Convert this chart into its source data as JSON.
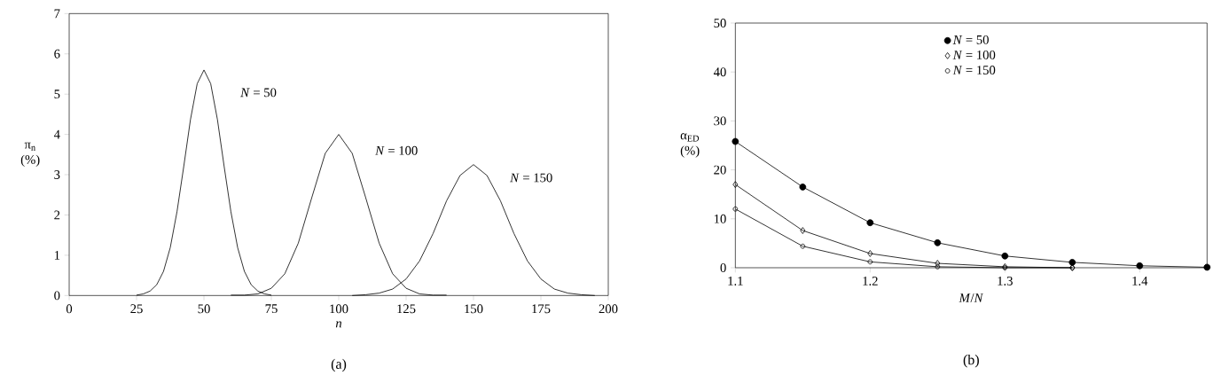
{
  "chart_data": [
    {
      "type": "line",
      "xlabel": "*n*",
      "ylabel": "π$_{n}$ (%)",
      "annotations": [
        "(a)"
      ],
      "xlim": [
        0,
        200
      ],
      "ylim": [
        0,
        7
      ],
      "xticks": [
        0,
        25,
        50,
        75,
        100,
        125,
        150,
        175,
        200
      ],
      "yticks": [
        0,
        1,
        2,
        3,
        4,
        5,
        6,
        7
      ],
      "grid": false,
      "legend": false,
      "marker": "none",
      "line_style": "solid",
      "series": [
        {
          "name": "*N* = 50",
          "color": "#000000",
          "x": [
            25,
            27.5,
            30,
            32.5,
            35,
            37.5,
            40,
            42.5,
            45,
            47.5,
            50,
            52.5,
            55,
            57.5,
            60,
            62.5,
            65,
            67.5,
            70,
            72.5,
            75
          ],
          "values": [
            0.01,
            0.04,
            0.11,
            0.27,
            0.6,
            1.19,
            2.08,
            3.2,
            4.37,
            5.26,
            5.6,
            5.26,
            4.37,
            3.2,
            2.08,
            1.19,
            0.6,
            0.27,
            0.11,
            0.04,
            0.01
          ]
        },
        {
          "name": "*N* = 100",
          "color": "#000000",
          "x": [
            60,
            65,
            70,
            75,
            80,
            85,
            90,
            95,
            100,
            105,
            110,
            115,
            120,
            125,
            130,
            135,
            140
          ],
          "values": [
            0.01,
            0.01,
            0.04,
            0.18,
            0.54,
            1.3,
            2.43,
            3.53,
            4,
            3.53,
            2.43,
            1.3,
            0.54,
            0.18,
            0.04,
            0.01,
            0.01
          ]
        },
        {
          "name": "*N* = 150",
          "color": "#000000",
          "x": [
            105,
            110,
            115,
            120,
            125,
            130,
            135,
            140,
            145,
            150,
            155,
            160,
            165,
            170,
            175,
            180,
            185,
            190,
            195
          ],
          "values": [
            0,
            0.02,
            0.06,
            0.16,
            0.41,
            0.86,
            1.54,
            2.35,
            2.98,
            3.25,
            2.98,
            2.35,
            1.54,
            0.86,
            0.41,
            0.16,
            0.06,
            0.02,
            0
          ]
        }
      ]
    },
    {
      "type": "line",
      "xlabel": "*M*/*N*",
      "ylabel": "α$_{ED}$ (%)",
      "annotations": [
        "(b)"
      ],
      "xlim": [
        1.1,
        1.45
      ],
      "ylim": [
        0,
        50
      ],
      "xticks": [
        1.1,
        1.2,
        1.3,
        1.4
      ],
      "yticks": [
        0,
        10,
        20,
        30,
        40,
        50
      ],
      "grid": false,
      "legend": "top",
      "line_style": "solid",
      "series": [
        {
          "name": "*N* = 50",
          "color": "#000000",
          "marker": "circle",
          "x": [
            1.1,
            1.15,
            1.2,
            1.25,
            1.3,
            1.35,
            1.4,
            1.45
          ],
          "values": [
            25.8,
            16.5,
            9.2,
            5.1,
            2.4,
            1.1,
            0.4,
            0.1
          ]
        },
        {
          "name": "*N* = 100",
          "color": "#000000",
          "marker": "diamond",
          "x": [
            1.1,
            1.15,
            1.2,
            1.25,
            1.3,
            1.35
          ],
          "values": [
            17,
            7.6,
            2.9,
            0.9,
            0.2,
            0
          ]
        },
        {
          "name": "*N* = 150",
          "color": "#000000",
          "marker": "circle",
          "x": [
            1.1,
            1.15,
            1.2,
            1.25,
            1.3,
            1.35
          ],
          "values": [
            12,
            4.4,
            1.2,
            0.2,
            0,
            0
          ]
        }
      ]
    }
  ]
}
